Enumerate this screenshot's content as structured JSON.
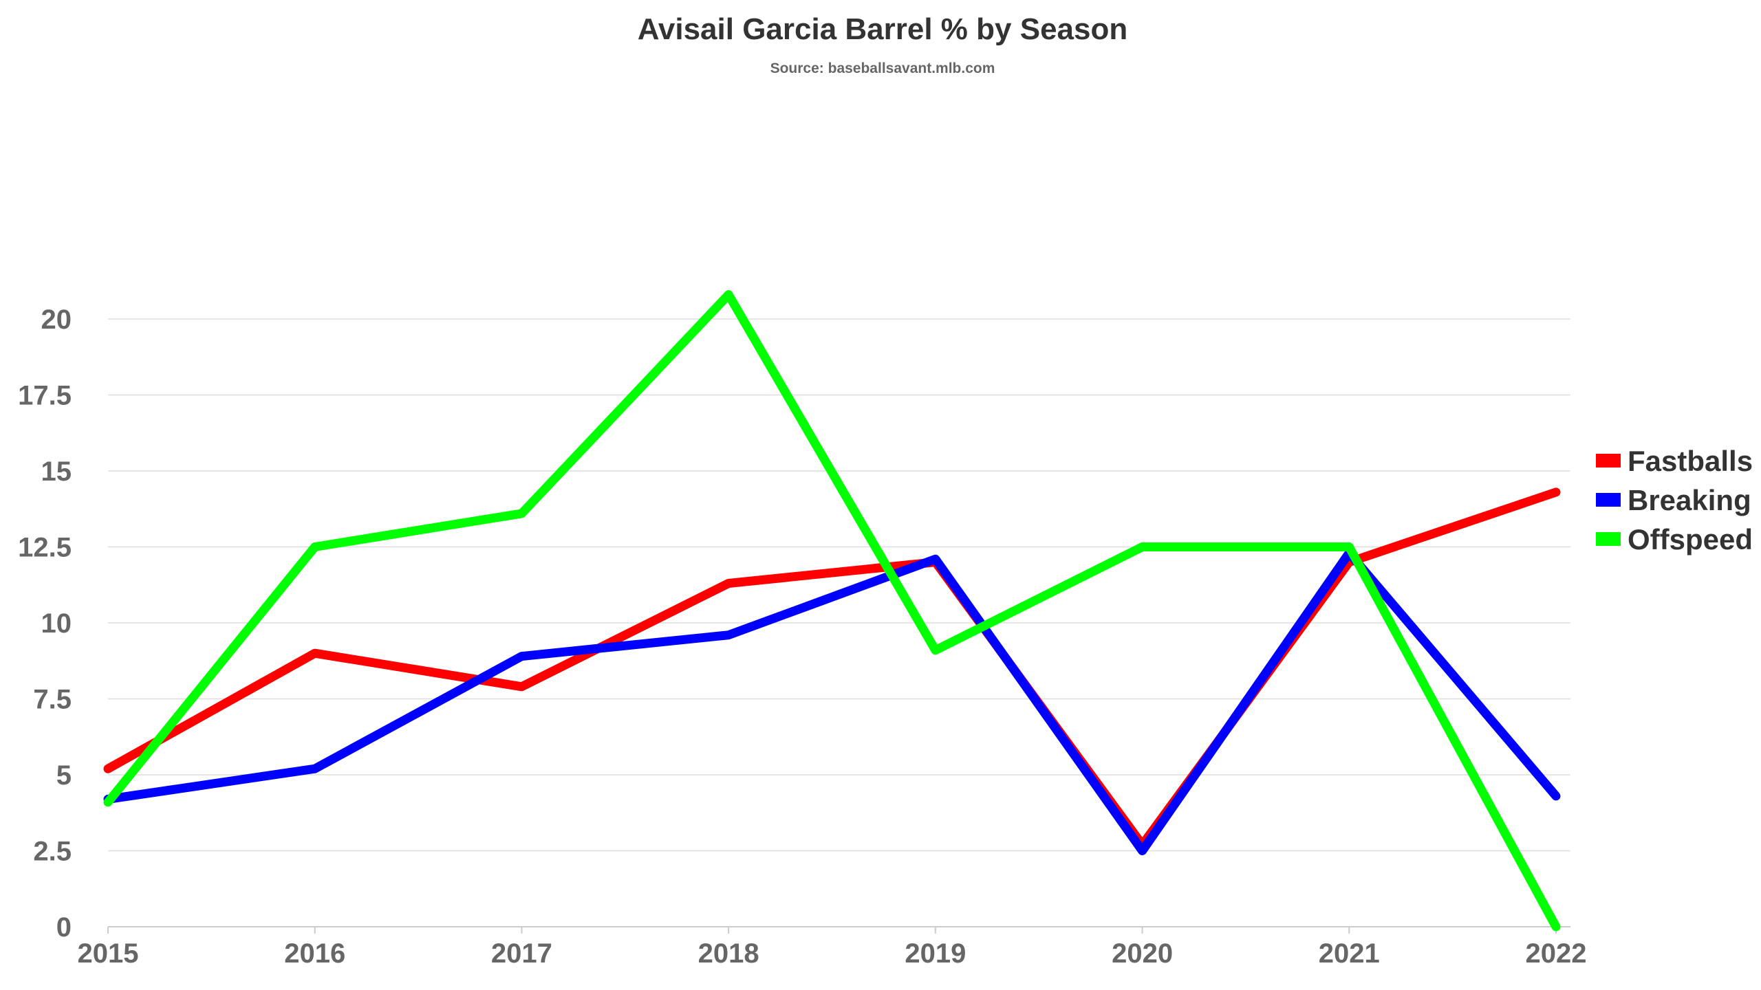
{
  "chart_data": {
    "type": "line",
    "title": "Avisail Garcia Barrel % by Season",
    "subtitle": "Source: baseballsavant.mlb.com",
    "xlabel": "",
    "ylabel": "",
    "x": [
      "2015",
      "2016",
      "2017",
      "2018",
      "2019",
      "2020",
      "2021",
      "2022"
    ],
    "y_ticks": [
      "0",
      "2.5",
      "5",
      "7.5",
      "10",
      "12.5",
      "15",
      "17.5",
      "20"
    ],
    "ylim": [
      0,
      21
    ],
    "grid": true,
    "legend_position": "right",
    "series": [
      {
        "name": "Fastballs",
        "color": "#ff0000",
        "values": [
          5.2,
          9.0,
          7.9,
          11.3,
          12.0,
          2.7,
          12.0,
          14.3
        ]
      },
      {
        "name": "Breaking",
        "color": "#0000ff",
        "values": [
          4.2,
          5.2,
          8.9,
          9.6,
          12.1,
          2.5,
          12.3,
          4.3
        ]
      },
      {
        "name": "Offspeed",
        "color": "#00ff00",
        "values": [
          4.1,
          12.5,
          13.6,
          20.8,
          9.1,
          12.5,
          12.5,
          0.0
        ]
      }
    ]
  }
}
